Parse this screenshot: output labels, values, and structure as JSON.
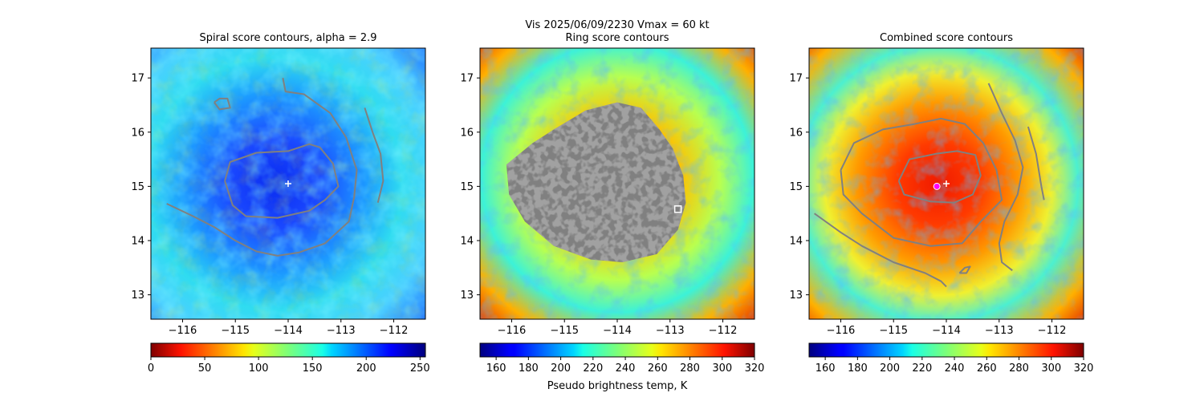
{
  "suptitle": "Vis  2025/06/09/2230    Vmax = 60 kt",
  "colors": {
    "contour": "#808080",
    "center_marker": "#ffffff",
    "fit_marker": "#ff00ff"
  },
  "chart_data": [
    {
      "type": "heatmap",
      "title": "Spiral score contours, alpha =  2.9",
      "colormap": "jet",
      "xlim": [
        -116.6,
        -111.4
      ],
      "ylim": [
        12.55,
        17.55
      ],
      "xticks": [
        "−116",
        "−115",
        "−114",
        "−113",
        "−112"
      ],
      "xtick_values": [
        -116,
        -115,
        -114,
        -113,
        -112
      ],
      "yticks": [
        "13",
        "14",
        "15",
        "16",
        "17"
      ],
      "ytick_values": [
        13,
        14,
        15,
        16,
        17
      ],
      "center_marker": [
        -114.0,
        15.05
      ],
      "contours": [
        [
          [
            -115.2,
            15.1
          ],
          [
            -115.1,
            15.45
          ],
          [
            -114.6,
            15.62
          ],
          [
            -114.0,
            15.65
          ],
          [
            -113.6,
            15.78
          ],
          [
            -113.4,
            15.72
          ],
          [
            -113.15,
            15.42
          ],
          [
            -113.05,
            15.0
          ],
          [
            -113.3,
            14.75
          ],
          [
            -113.6,
            14.55
          ],
          [
            -114.2,
            14.42
          ],
          [
            -114.8,
            14.45
          ],
          [
            -115.05,
            14.65
          ],
          [
            -115.2,
            15.1
          ]
        ],
        [
          [
            -116.3,
            14.68
          ],
          [
            -115.8,
            14.45
          ],
          [
            -115.4,
            14.25
          ],
          [
            -115.0,
            14.0
          ],
          [
            -114.6,
            13.8
          ],
          [
            -114.2,
            13.72
          ],
          [
            -113.8,
            13.78
          ],
          [
            -113.3,
            13.95
          ],
          [
            -112.85,
            14.35
          ],
          [
            -112.75,
            14.8
          ],
          [
            -112.7,
            15.3
          ],
          [
            -112.9,
            15.9
          ],
          [
            -113.2,
            16.35
          ],
          [
            -113.7,
            16.7
          ],
          [
            -114.05,
            16.75
          ],
          [
            -114.1,
            17.0
          ]
        ],
        [
          [
            -112.55,
            16.45
          ],
          [
            -112.4,
            16.0
          ],
          [
            -112.25,
            15.6
          ],
          [
            -112.2,
            15.1
          ],
          [
            -112.3,
            14.7
          ]
        ],
        [
          [
            -115.4,
            16.55
          ],
          [
            -115.3,
            16.62
          ],
          [
            -115.15,
            16.62
          ],
          [
            -115.1,
            16.45
          ],
          [
            -115.3,
            16.42
          ],
          [
            -115.4,
            16.55
          ]
        ]
      ]
    },
    {
      "type": "heatmap",
      "title": "Ring score contours",
      "colormap": "jet",
      "xlim": [
        -116.6,
        -111.4
      ],
      "ylim": [
        12.55,
        17.55
      ],
      "xticks": [
        "−116",
        "−115",
        "−114",
        "−113",
        "−112"
      ],
      "xtick_values": [
        -116,
        -115,
        -114,
        -113,
        -112
      ],
      "yticks": [
        "13",
        "14",
        "15",
        "16",
        "17"
      ],
      "ytick_values": [
        13,
        14,
        15,
        16,
        17
      ],
      "square_marker": [
        -112.85,
        14.58
      ],
      "filled_region": [
        [
          -116.1,
          15.4
        ],
        [
          -115.6,
          15.8
        ],
        [
          -115.2,
          16.05
        ],
        [
          -114.6,
          16.4
        ],
        [
          -114.0,
          16.55
        ],
        [
          -113.55,
          16.45
        ],
        [
          -113.2,
          16.05
        ],
        [
          -112.95,
          15.7
        ],
        [
          -112.75,
          15.2
        ],
        [
          -112.7,
          14.7
        ],
        [
          -112.85,
          14.2
        ],
        [
          -113.25,
          13.75
        ],
        [
          -113.9,
          13.6
        ],
        [
          -114.5,
          13.65
        ],
        [
          -115.2,
          13.9
        ],
        [
          -115.75,
          14.35
        ],
        [
          -116.05,
          14.85
        ],
        [
          -116.1,
          15.4
        ]
      ]
    },
    {
      "type": "heatmap",
      "title": "Combined score contours",
      "colormap": "jet",
      "xlim": [
        -116.6,
        -111.4
      ],
      "ylim": [
        12.55,
        17.55
      ],
      "xticks": [
        "−116",
        "−115",
        "−114",
        "−113",
        "−112"
      ],
      "xtick_values": [
        -116,
        -115,
        -114,
        -113,
        -112
      ],
      "yticks": [
        "13",
        "14",
        "15",
        "16",
        "17"
      ],
      "ytick_values": [
        13,
        14,
        15,
        16,
        17
      ],
      "center_marker": [
        -114.0,
        15.05
      ],
      "fit_marker": [
        -114.18,
        15.0
      ],
      "contours": [
        [
          [
            -114.9,
            15.1
          ],
          [
            -114.7,
            15.5
          ],
          [
            -114.2,
            15.6
          ],
          [
            -113.8,
            15.65
          ],
          [
            -113.45,
            15.58
          ],
          [
            -113.35,
            15.2
          ],
          [
            -113.5,
            14.85
          ],
          [
            -113.85,
            14.7
          ],
          [
            -114.3,
            14.72
          ],
          [
            -114.8,
            14.85
          ],
          [
            -114.9,
            15.1
          ]
        ],
        [
          [
            -116.0,
            15.3
          ],
          [
            -115.75,
            15.8
          ],
          [
            -115.2,
            16.05
          ],
          [
            -114.6,
            16.15
          ],
          [
            -114.1,
            16.25
          ],
          [
            -113.65,
            16.15
          ],
          [
            -113.3,
            15.8
          ],
          [
            -113.05,
            15.3
          ],
          [
            -112.95,
            14.75
          ],
          [
            -113.35,
            14.35
          ],
          [
            -113.7,
            13.95
          ],
          [
            -114.3,
            13.9
          ],
          [
            -115.0,
            14.05
          ],
          [
            -115.6,
            14.5
          ],
          [
            -115.95,
            14.85
          ],
          [
            -116.0,
            15.3
          ]
        ],
        [
          [
            -116.5,
            14.5
          ],
          [
            -116.0,
            14.15
          ],
          [
            -115.6,
            13.9
          ],
          [
            -115.0,
            13.6
          ],
          [
            -114.4,
            13.4
          ],
          [
            -114.1,
            13.25
          ],
          [
            -114.0,
            13.15
          ]
        ],
        [
          [
            -113.2,
            16.9
          ],
          [
            -112.95,
            16.35
          ],
          [
            -112.7,
            15.85
          ],
          [
            -112.55,
            15.35
          ],
          [
            -112.65,
            14.85
          ],
          [
            -112.9,
            14.35
          ],
          [
            -113.0,
            13.95
          ],
          [
            -112.95,
            13.6
          ],
          [
            -112.75,
            13.45
          ]
        ],
        [
          [
            -112.45,
            16.1
          ],
          [
            -112.3,
            15.6
          ],
          [
            -112.2,
            15.0
          ],
          [
            -112.15,
            14.75
          ]
        ],
        [
          [
            -113.75,
            13.4
          ],
          [
            -113.65,
            13.5
          ],
          [
            -113.55,
            13.52
          ],
          [
            -113.62,
            13.4
          ],
          [
            -113.75,
            13.4
          ]
        ]
      ]
    }
  ],
  "colorbars": [
    {
      "ticks": [
        "0",
        "50",
        "100",
        "150",
        "200",
        "250"
      ],
      "values": [
        0,
        50,
        100,
        150,
        200,
        250
      ],
      "range": [
        0,
        255
      ],
      "label": ""
    },
    {
      "ticks": [
        "160",
        "180",
        "200",
        "220",
        "240",
        "260",
        "280",
        "300",
        "320"
      ],
      "values": [
        160,
        180,
        200,
        220,
        240,
        260,
        280,
        300,
        320
      ],
      "range": [
        150,
        320
      ],
      "label": "Pseudo brightness temp, K"
    },
    {
      "ticks": [
        "160",
        "180",
        "200",
        "220",
        "240",
        "260",
        "280",
        "300",
        "320"
      ],
      "values": [
        160,
        180,
        200,
        220,
        240,
        260,
        280,
        300,
        320
      ],
      "range": [
        150,
        320
      ],
      "label": ""
    }
  ]
}
